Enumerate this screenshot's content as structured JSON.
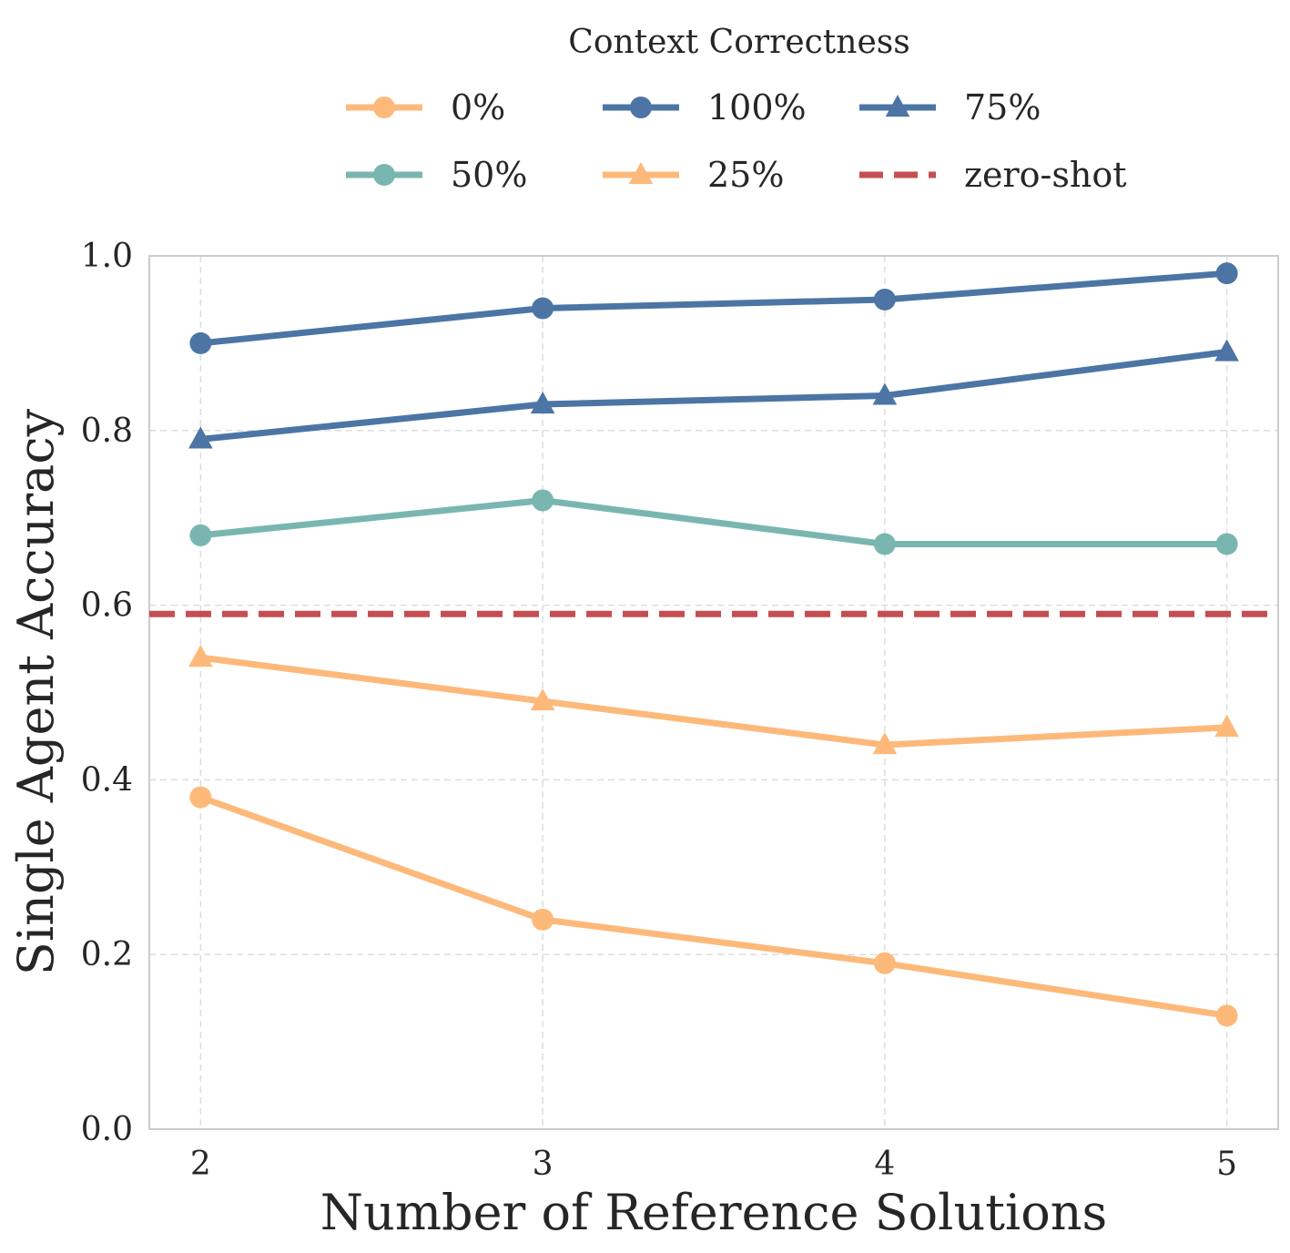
{
  "chart_data": {
    "type": "line",
    "xlabel": "Number of Reference Solutions",
    "ylabel": "Single Agent Accuracy",
    "x": [
      2,
      3,
      4,
      5
    ],
    "xlim": [
      1.85,
      5.15
    ],
    "ylim": [
      0.0,
      1.0
    ],
    "xticks": [
      "2",
      "3",
      "4",
      "5"
    ],
    "yticks": [
      "0.0",
      "0.2",
      "0.4",
      "0.6",
      "0.8",
      "1.0"
    ],
    "grid": true,
    "legend": {
      "title": "Context Correctness",
      "placement": "top-center, outside"
    },
    "series": [
      {
        "name": "0%",
        "values": [
          0.38,
          0.24,
          0.19,
          0.13
        ],
        "marker": "circle",
        "color": "#fdb97a"
      },
      {
        "name": "50%",
        "values": [
          0.68,
          0.72,
          0.67,
          0.67
        ],
        "marker": "circle",
        "color": "#7ab6b0"
      },
      {
        "name": "100%",
        "values": [
          0.9,
          0.94,
          0.95,
          0.98
        ],
        "marker": "circle",
        "color": "#4c75a5"
      },
      {
        "name": "25%",
        "values": [
          0.54,
          0.49,
          0.44,
          0.46
        ],
        "marker": "triangle",
        "color": "#fdb97a"
      },
      {
        "name": "75%",
        "values": [
          0.79,
          0.83,
          0.84,
          0.89
        ],
        "marker": "triangle",
        "color": "#4c75a5"
      }
    ],
    "reference_lines": [
      {
        "name": "zero-shot",
        "y": 0.59,
        "style": "dashed",
        "color": "#c44e52"
      }
    ]
  }
}
